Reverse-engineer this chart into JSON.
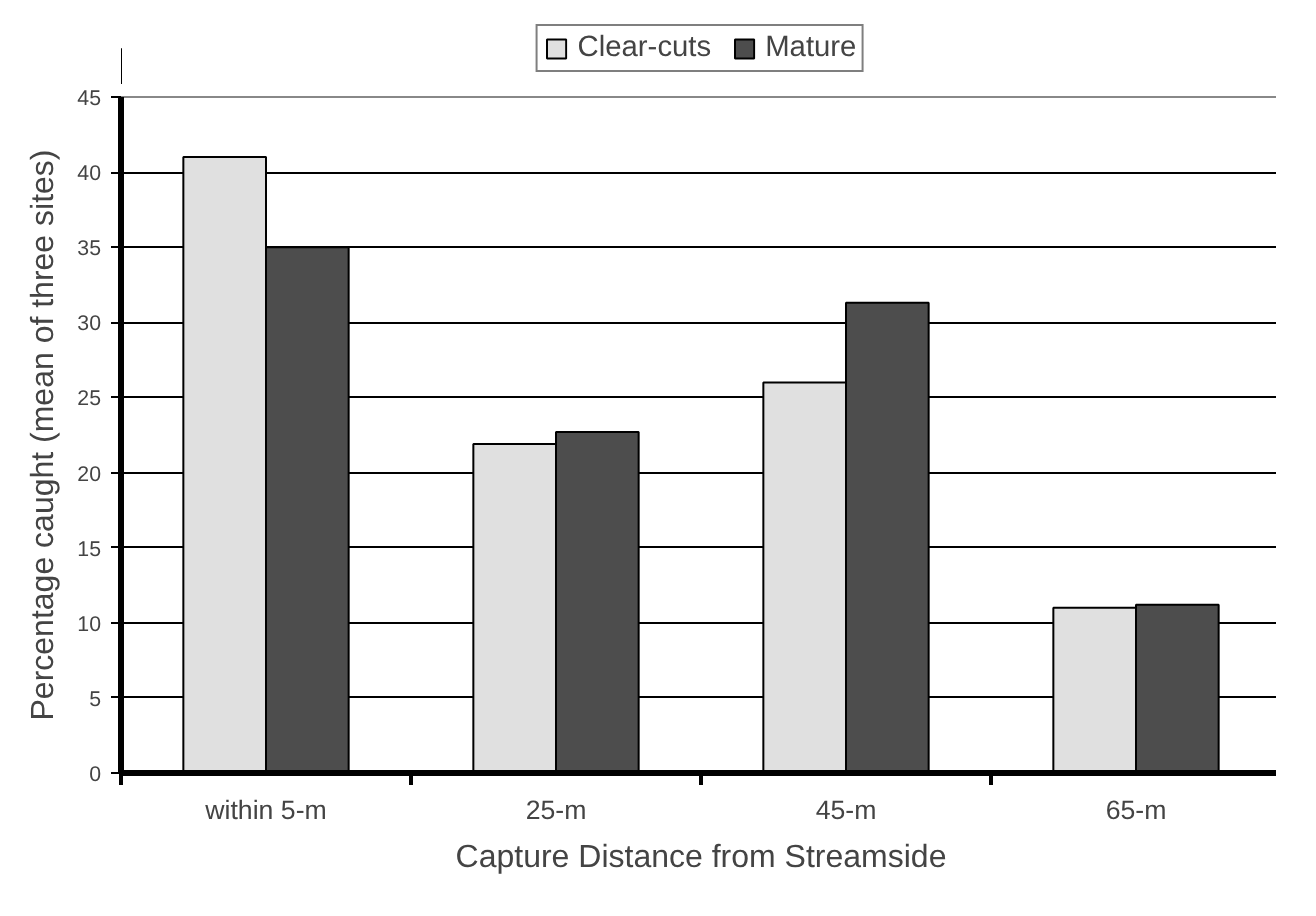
{
  "chart_data": {
    "type": "bar",
    "xlabel": "Capture Distance from Streamside",
    "ylabel": "Percentage caught (mean of three sites)",
    "categories": [
      "within 5-m",
      "25-m",
      "45-m",
      "65-m"
    ],
    "series": [
      {
        "name": "Clear-cuts",
        "color": "#e0e0e0",
        "values": [
          41.0,
          21.9,
          26.0,
          11.0
        ]
      },
      {
        "name": "Mature",
        "color": "#4d4d4d",
        "values": [
          35.0,
          22.7,
          31.3,
          11.2
        ]
      }
    ],
    "ylim": [
      0,
      45
    ],
    "yticks": [
      0,
      5,
      10,
      15,
      20,
      25,
      30,
      35,
      40,
      45
    ],
    "grid": "y",
    "legend": "top"
  }
}
